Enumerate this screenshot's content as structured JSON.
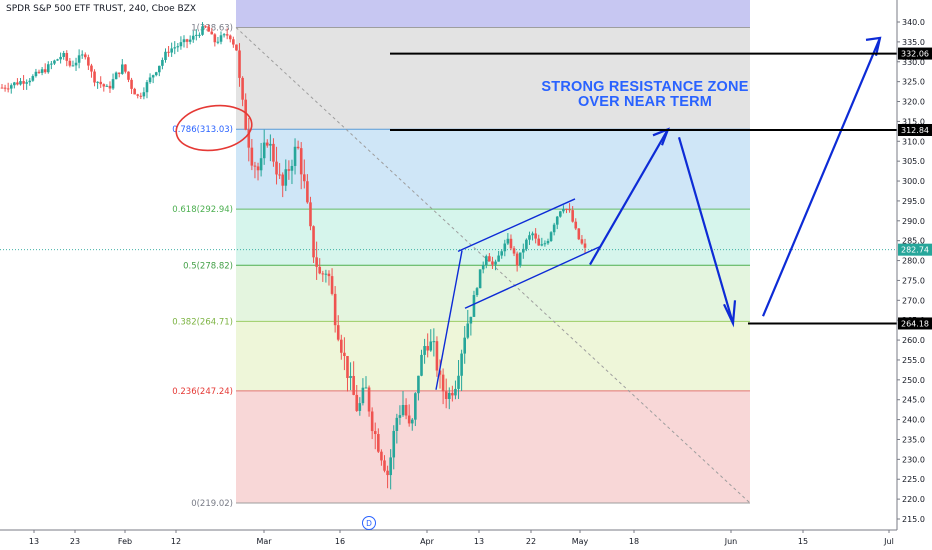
{
  "header": {
    "title": "SPDR S&P 500 ETF TRUST, 240, Cboe BZX"
  },
  "annotation": {
    "line1": "STRONG RESISTANCE ZONE",
    "line2": "OVER NEAR TERM"
  },
  "event_marker": "D",
  "colors": {
    "up": "#26a69a",
    "down": "#ef5350",
    "drawing": "#0d2bd6",
    "annotation_text": "#2962ff",
    "circle": "#e53935"
  },
  "chart_data": {
    "type": "candlestick",
    "title": "SPDR S&P 500 ETF TRUST, 240, Cboe BZX",
    "ylim": [
      212,
      343
    ],
    "y_ticks": [
      215,
      220,
      225,
      230,
      235,
      240,
      245,
      250,
      255,
      260,
      265,
      270,
      275,
      280,
      285,
      290,
      295,
      300,
      305,
      310,
      315,
      320,
      325,
      330,
      335,
      340
    ],
    "x_ticks": [
      "13",
      "23",
      "Feb",
      "12",
      "Mar",
      "16",
      "Apr",
      "13",
      "22",
      "May",
      "18",
      "Jun",
      "15",
      "Jul"
    ],
    "last_price": "282.74",
    "price_labels": [
      "332.06",
      "312.84",
      "264.18"
    ],
    "fibonacci": {
      "top_label": "1(338.63)",
      "levels": [
        {
          "ratio": "1",
          "value": 338.63,
          "label": "1(338.63)"
        },
        {
          "ratio": "0.786",
          "value": 313.03,
          "label": "0.786(313.03)"
        },
        {
          "ratio": "0.618",
          "value": 292.94,
          "label": "0.618(292.94)"
        },
        {
          "ratio": "0.5",
          "value": 278.82,
          "label": "0.5(278.82)"
        },
        {
          "ratio": "0.382",
          "value": 264.71,
          "label": "0.382(264.71)"
        },
        {
          "ratio": "0.236",
          "value": 247.24,
          "label": "0.236(247.24)"
        },
        {
          "ratio": "0",
          "value": 219.02,
          "label": "0(219.02)"
        }
      ]
    },
    "projection_path": [
      281,
      313,
      264.2,
      336
    ],
    "resistance_lines": [
      332.06,
      312.84,
      264.18
    ],
    "price_path": [
      [
        0,
        323.5
      ],
      [
        0.04,
        326
      ],
      [
        0.06,
        328.5
      ],
      [
        0.08,
        331.8
      ],
      [
        0.09,
        329
      ],
      [
        0.11,
        332
      ],
      [
        0.12,
        326
      ],
      [
        0.14,
        323
      ],
      [
        0.15,
        326.5
      ],
      [
        0.16,
        329
      ],
      [
        0.17,
        324
      ],
      [
        0.18,
        321
      ],
      [
        0.2,
        327
      ],
      [
        0.22,
        333
      ],
      [
        0.25,
        335.6
      ],
      [
        0.26,
        337.5
      ],
      [
        0.27,
        338.6
      ],
      [
        0.28,
        335
      ],
      [
        0.3,
        337
      ],
      [
        0.31,
        333
      ],
      [
        0.315,
        322
      ],
      [
        0.32,
        316
      ],
      [
        0.33,
        306
      ],
      [
        0.34,
        302
      ],
      [
        0.35,
        311
      ],
      [
        0.36,
        305
      ],
      [
        0.37,
        298
      ],
      [
        0.38,
        304
      ],
      [
        0.39,
        309
      ],
      [
        0.4,
        298
      ],
      [
        0.41,
        283
      ],
      [
        0.42,
        276
      ],
      [
        0.43,
        278
      ],
      [
        0.44,
        266
      ],
      [
        0.45,
        257
      ],
      [
        0.46,
        249
      ],
      [
        0.47,
        242
      ],
      [
        0.48,
        248
      ],
      [
        0.49,
        238
      ],
      [
        0.5,
        232
      ],
      [
        0.51,
        226
      ],
      [
        0.52,
        240
      ],
      [
        0.53,
        244
      ],
      [
        0.54,
        236
      ],
      [
        0.55,
        252
      ],
      [
        0.56,
        260
      ],
      [
        0.57,
        258
      ],
      [
        0.58,
        248
      ],
      [
        0.59,
        246
      ],
      [
        0.6,
        250
      ],
      [
        0.61,
        261
      ],
      [
        0.62,
        268
      ],
      [
        0.63,
        276
      ],
      [
        0.64,
        282
      ],
      [
        0.65,
        278
      ],
      [
        0.66,
        283
      ],
      [
        0.67,
        285
      ],
      [
        0.68,
        279
      ],
      [
        0.69,
        284
      ],
      [
        0.7,
        287
      ],
      [
        0.71,
        283
      ],
      [
        0.72,
        285
      ],
      [
        0.73,
        290
      ],
      [
        0.74,
        294
      ],
      [
        0.75,
        292
      ],
      [
        0.76,
        286
      ],
      [
        0.77,
        282.7
      ]
    ]
  }
}
